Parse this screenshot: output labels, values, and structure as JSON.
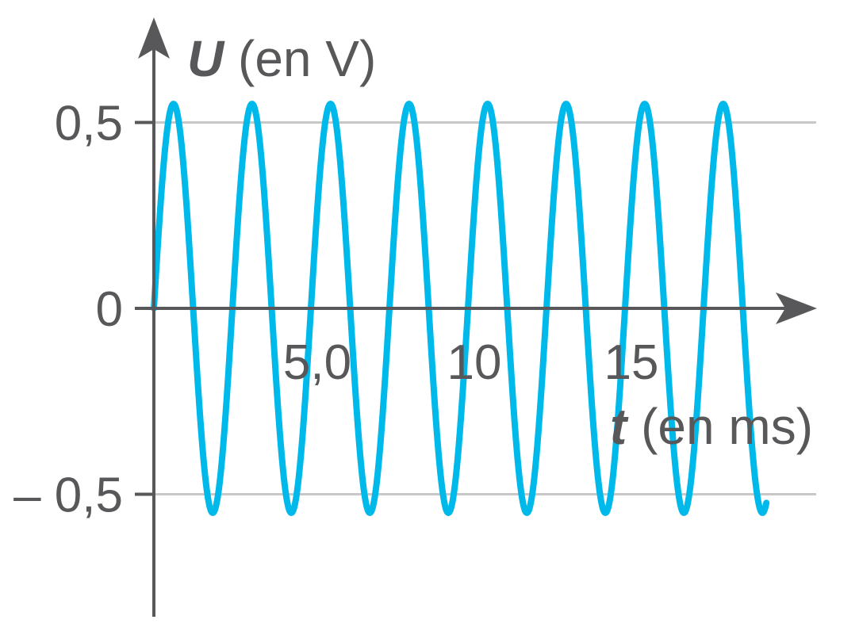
{
  "chart_data": {
    "type": "line",
    "title": "",
    "xlabel": {
      "symbol": "t",
      "unit": " (en ms)"
    },
    "ylabel": {
      "symbol": "U",
      "unit": " (en V)"
    },
    "xlim": [
      0,
      19.5
    ],
    "ylim": [
      -0.75,
      0.7
    ],
    "x_ticks": [
      {
        "value": 5,
        "label": "5,0"
      },
      {
        "value": 10,
        "label": "10"
      },
      {
        "value": 15,
        "label": "15"
      }
    ],
    "y_ticks": [
      {
        "value": 0.5,
        "label": "0,5"
      },
      {
        "value": 0,
        "label": "0"
      },
      {
        "value": -0.5,
        "label": "– 0,5"
      }
    ],
    "grid": {
      "horizontal_at": [
        0.5,
        -0.5
      ]
    },
    "series": [
      {
        "function": "sine",
        "amplitude": 0.55,
        "period": 2.5,
        "phase": 0,
        "x_start": 0,
        "x_end": 19.5,
        "color": "#00b9eb"
      }
    ],
    "colors": {
      "axis": "#58585a",
      "grid": "#c8c8c8",
      "text": "#58585a"
    }
  }
}
